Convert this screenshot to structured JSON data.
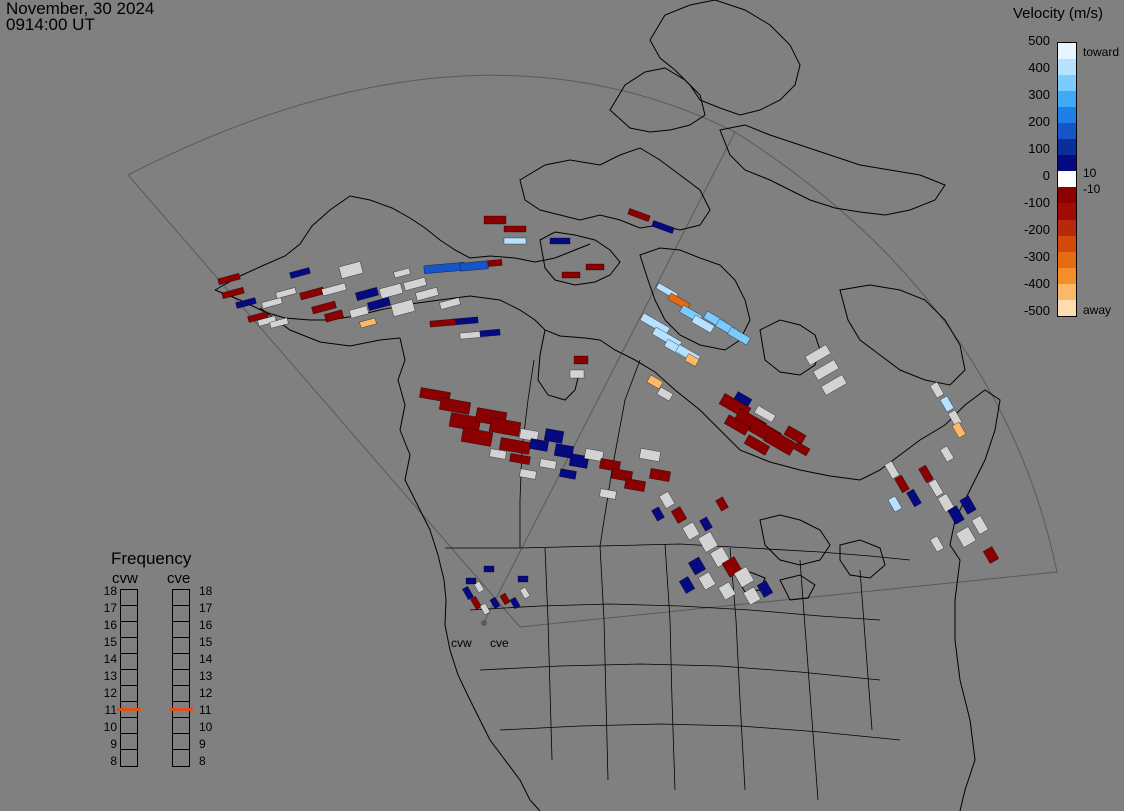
{
  "header": {
    "date": "November, 30 2024",
    "time": "0914:00 UT"
  },
  "colorbar": {
    "title": "Velocity (m/s)",
    "ticks": [
      "500",
      "400",
      "300",
      "200",
      "100",
      "0",
      "-100",
      "-200",
      "-300",
      "-400",
      "-500"
    ],
    "toward_label": "toward",
    "away_label": "away",
    "pos_label": "10",
    "neg_label": "-10",
    "colors": [
      "#e6f5ff",
      "#b7e2ff",
      "#7ccbff",
      "#3fa9f5",
      "#1e7fe6",
      "#1555c8",
      "#0a2e9a",
      "#050a80",
      "#ffffff",
      "#8b0000",
      "#a00c05",
      "#b8280a",
      "#d24a0a",
      "#e56a10",
      "#f48e28",
      "#fbb86a",
      "#ffdcb0"
    ]
  },
  "frequency": {
    "title": "Frequency",
    "radars": [
      {
        "name": "cvw",
        "selected": "11"
      },
      {
        "name": "cve",
        "selected": "11"
      }
    ],
    "channels": [
      "18",
      "17",
      "16",
      "15",
      "14",
      "13",
      "12",
      "11",
      "10",
      "9",
      "8"
    ]
  },
  "sites": {
    "west": "cvw",
    "east": "cve"
  },
  "legend_colors": {
    "marker": "#e04e1a",
    "ground_scatter": "#d3d3d3"
  }
}
